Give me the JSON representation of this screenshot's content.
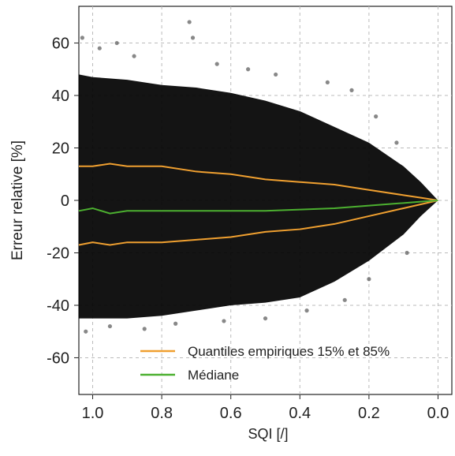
{
  "chart_data": {
    "type": "scatter",
    "xlabel": "SQI [/]",
    "ylabel": "Erreur relative [%]",
    "xlim": [
      1.04,
      -0.04
    ],
    "ylim": [
      -74,
      74
    ],
    "xticks": [
      {
        "value": 1.0,
        "label": "1.0"
      },
      0.8,
      0.6,
      0.4,
      0.2,
      {
        "value": 0.0,
        "label": "0.0"
      }
    ],
    "yticks": [
      -60,
      -40,
      -20,
      0,
      20,
      40,
      60
    ],
    "grid": true,
    "legend": "lower right",
    "cloud": {
      "color": "#000000",
      "x": [
        1.04,
        1.0,
        0.9,
        0.8,
        0.7,
        0.6,
        0.5,
        0.4,
        0.3,
        0.2,
        0.1,
        0.05,
        0.0
      ],
      "upper": [
        48,
        47,
        46,
        44,
        43,
        41,
        38,
        34,
        28,
        22,
        13,
        7,
        0
      ],
      "lower": [
        -45,
        -45,
        -45,
        -44,
        -42,
        -40,
        -39,
        -37,
        -31,
        -23,
        -13,
        -6,
        0
      ]
    },
    "points": {
      "color": "#555555",
      "x": [
        1.03,
        0.98,
        0.93,
        0.88,
        0.72,
        0.71,
        0.64,
        0.55,
        0.47,
        0.32,
        0.25,
        0.18,
        0.12,
        1.02,
        0.95,
        0.85,
        0.76,
        0.62,
        0.5,
        0.38,
        0.27,
        0.2,
        0.09
      ],
      "y": [
        62,
        58,
        60,
        55,
        68,
        62,
        52,
        50,
        48,
        45,
        42,
        32,
        22,
        -50,
        -48,
        -49,
        -47,
        -46,
        -45,
        -42,
        -38,
        -30,
        -20
      ]
    },
    "series": [
      {
        "name": "Quantiles empiriques 15% et 85%",
        "color": "#f0a030",
        "x": [
          1.04,
          1.0,
          0.95,
          0.9,
          0.8,
          0.7,
          0.6,
          0.5,
          0.4,
          0.3,
          0.2,
          0.1,
          0.05,
          0.0
        ],
        "values": [
          13,
          13,
          14,
          13,
          13,
          11,
          10,
          8,
          7,
          6,
          4,
          2,
          1,
          0
        ]
      },
      {
        "name": null,
        "color": "#f0a030",
        "x": [
          1.04,
          1.0,
          0.95,
          0.9,
          0.8,
          0.7,
          0.6,
          0.5,
          0.4,
          0.3,
          0.2,
          0.1,
          0.05,
          0.0
        ],
        "values": [
          -17,
          -16,
          -17,
          -16,
          -16,
          -15,
          -14,
          -12,
          -11,
          -9,
          -6,
          -3,
          -1.5,
          0
        ]
      },
      {
        "name": "Médiane",
        "color": "#4cb030",
        "x": [
          1.04,
          1.0,
          0.95,
          0.9,
          0.8,
          0.7,
          0.6,
          0.5,
          0.4,
          0.3,
          0.2,
          0.1,
          0.05,
          0.0
        ],
        "values": [
          -4,
          -3,
          -5,
          -4,
          -4,
          -4,
          -4,
          -4,
          -3.5,
          -3,
          -2,
          -1,
          -0.5,
          0
        ]
      }
    ]
  }
}
